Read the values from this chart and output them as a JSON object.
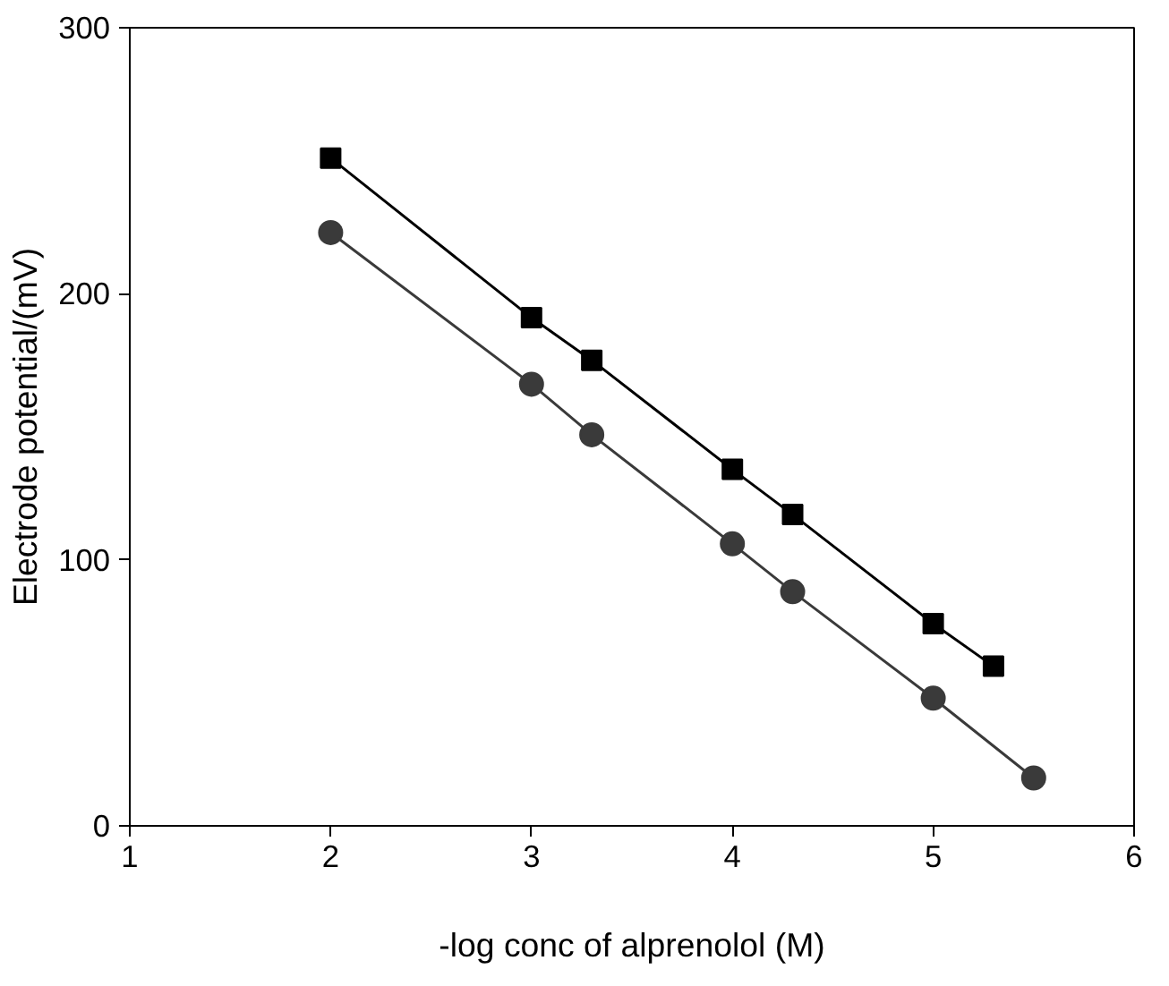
{
  "chart_data": {
    "type": "line",
    "xlabel": "-log conc of alprenolol (M)",
    "ylabel": "Electrode potential/(mV)",
    "xlim": [
      1,
      6
    ],
    "xticks": [
      1,
      2,
      3,
      4,
      5,
      6
    ],
    "ylim": [
      0,
      300
    ],
    "yticks": [
      0,
      100,
      200,
      300
    ],
    "grid": false,
    "line_style": "solid",
    "series": [
      {
        "color": "#000000",
        "marker": "square",
        "x": [
          2,
          3,
          3.3,
          4,
          4.3,
          5,
          5.3
        ],
        "values": [
          251,
          191,
          175,
          134,
          117,
          76,
          60
        ]
      },
      {
        "color": "#3a3a3a",
        "marker": "circle",
        "x": [
          2,
          3,
          3.3,
          4,
          4.3,
          5,
          5.5
        ],
        "values": [
          223,
          166,
          147,
          106,
          88,
          48,
          18
        ]
      }
    ]
  }
}
